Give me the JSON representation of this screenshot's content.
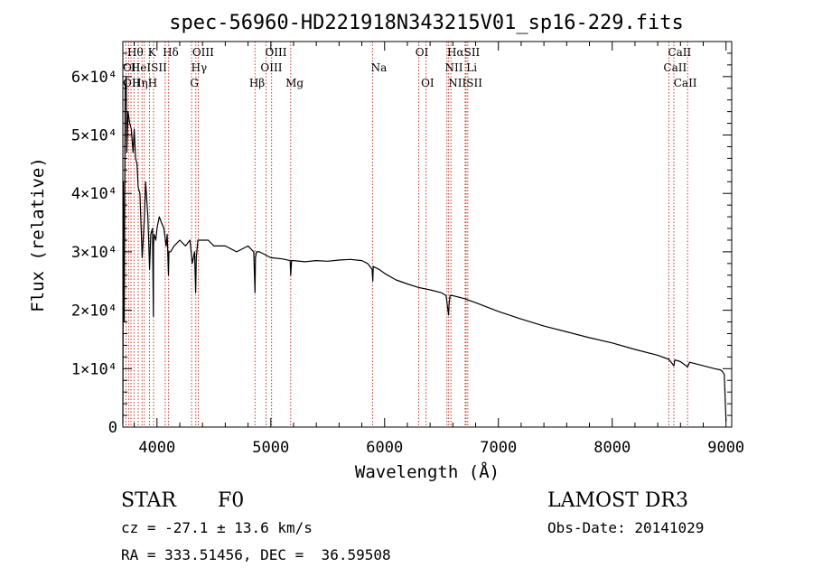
{
  "chart_data": {
    "type": "line",
    "title": "spec-56960-HD221918N343215V01_sp16-229.fits",
    "xlabel": "Wavelength (Å)",
    "ylabel": "Flux (relative)",
    "xlim": [
      3700,
      9050
    ],
    "ylim": [
      0,
      66000
    ],
    "x_ticks": [
      {
        "value": 4000,
        "label": "4000"
      },
      {
        "value": 5000,
        "label": "5000"
      },
      {
        "value": 6000,
        "label": "6000"
      },
      {
        "value": 7000,
        "label": "7000"
      },
      {
        "value": 8000,
        "label": "8000"
      },
      {
        "value": 9000,
        "label": "9000"
      }
    ],
    "y_ticks": [
      {
        "value": 0,
        "label": "0"
      },
      {
        "value": 10000,
        "label": "1×10⁴"
      },
      {
        "value": 20000,
        "label": "2×10⁴"
      },
      {
        "value": 30000,
        "label": "3×10⁴"
      },
      {
        "value": 40000,
        "label": "4×10⁴"
      },
      {
        "value": 50000,
        "label": "5×10⁴"
      },
      {
        "value": 60000,
        "label": "6×10⁴"
      }
    ],
    "series": [
      {
        "name": "spectrum",
        "x": [
          3700,
          3705,
          3712,
          3720,
          3730,
          3735,
          3745,
          3760,
          3775,
          3790,
          3800,
          3812,
          3825,
          3835,
          3850,
          3870,
          3890,
          3900,
          3920,
          3935,
          3945,
          3960,
          3968,
          3970,
          3975,
          3990,
          4000,
          4020,
          4040,
          4060,
          4080,
          4090,
          4101,
          4105,
          4120,
          4150,
          4200,
          4250,
          4290,
          4300,
          4310,
          4330,
          4340,
          4345,
          4360,
          4380,
          4400,
          4450,
          4500,
          4600,
          4700,
          4800,
          4850,
          4861,
          4865,
          4875,
          4900,
          4950,
          5000,
          5100,
          5170,
          5175,
          5183,
          5200,
          5300,
          5400,
          5500,
          5600,
          5700,
          5800,
          5850,
          5890,
          5896,
          5900,
          5950,
          6000,
          6100,
          6200,
          6300,
          6400,
          6500,
          6540,
          6562,
          6566,
          6575,
          6600,
          6700,
          6800,
          7000,
          7200,
          7400,
          7600,
          7800,
          8000,
          8200,
          8400,
          8498,
          8542,
          8550,
          8600,
          8662,
          8680,
          8800,
          8900,
          8950,
          8970,
          8985,
          9000
        ],
        "y": [
          500,
          42000,
          18000,
          58000,
          60000,
          47000,
          54000,
          52000,
          51000,
          47000,
          51000,
          46000,
          45000,
          41000,
          40000,
          29000,
          36000,
          42000,
          36000,
          27000,
          33000,
          34000,
          19000,
          31000,
          33000,
          32000,
          34000,
          36000,
          35000,
          34000,
          31000,
          33000,
          26000,
          30000,
          30000,
          31000,
          32000,
          31000,
          32000,
          30000,
          28000,
          30000,
          23000,
          29000,
          32000,
          32000,
          32000,
          32000,
          31000,
          31000,
          30000,
          31000,
          30000,
          23000,
          29000,
          30000,
          30000,
          29500,
          29000,
          28800,
          28500,
          26000,
          28500,
          28500,
          28300,
          28500,
          28400,
          28600,
          28700,
          28500,
          28000,
          27000,
          25000,
          27500,
          27000,
          26300,
          25200,
          24500,
          23900,
          23500,
          23000,
          22500,
          19200,
          21000,
          22500,
          22500,
          22000,
          21300,
          19800,
          18500,
          17300,
          16300,
          15300,
          14400,
          13300,
          12300,
          11600,
          10500,
          11500,
          11200,
          10300,
          11100,
          10500,
          10000,
          9800,
          9500,
          9000,
          1000
        ]
      }
    ],
    "lines": [
      {
        "wavelength": 3727,
        "label": "OII"
      },
      {
        "wavelength": 3751,
        "label": "Hθ"
      },
      {
        "wavelength": 3771,
        "label": "Hη"
      },
      {
        "wavelength": 3798,
        "label": "Hθ"
      },
      {
        "wavelength": 3835,
        "label": "Hη"
      },
      {
        "wavelength": 3869,
        "label": "Ne"
      },
      {
        "wavelength": 3889,
        "label": "HeI"
      },
      {
        "wavelength": 3934,
        "label": "K"
      },
      {
        "wavelength": 3970,
        "label": "H"
      },
      {
        "wavelength": 4072,
        "label": "SII"
      },
      {
        "wavelength": 4102,
        "label": "Hδ"
      },
      {
        "wavelength": 4304,
        "label": "G"
      },
      {
        "wavelength": 4341,
        "label": "Hγ"
      },
      {
        "wavelength": 4363,
        "label": "OIII"
      },
      {
        "wavelength": 4861,
        "label": "Hβ"
      },
      {
        "wavelength": 4959,
        "label": "OIII"
      },
      {
        "wavelength": 5007,
        "label": "OIII"
      },
      {
        "wavelength": 5175,
        "label": "Mg"
      },
      {
        "wavelength": 5894,
        "label": "Na"
      },
      {
        "wavelength": 6300,
        "label": "OI"
      },
      {
        "wavelength": 6364,
        "label": "OI"
      },
      {
        "wavelength": 6548,
        "label": "NII"
      },
      {
        "wavelength": 6563,
        "label": "Hα"
      },
      {
        "wavelength": 6583,
        "label": "NII"
      },
      {
        "wavelength": 6708,
        "label": "Li"
      },
      {
        "wavelength": 6716,
        "label": "SII"
      },
      {
        "wavelength": 6731,
        "label": "SII"
      },
      {
        "wavelength": 8498,
        "label": "CaII"
      },
      {
        "wavelength": 8542,
        "label": "CaII"
      },
      {
        "wavelength": 8662,
        "label": "CaII"
      }
    ],
    "line_labels": [
      {
        "text": "Hθ",
        "row": 0,
        "x_wl": 3740
      },
      {
        "text": "K",
        "row": 0,
        "x_wl": 3920
      },
      {
        "text": "Hδ",
        "row": 0,
        "x_wl": 4050
      },
      {
        "text": "OIII",
        "row": 0,
        "x_wl": 4310
      },
      {
        "text": "OIII",
        "row": 0,
        "x_wl": 4950
      },
      {
        "text": "OI",
        "row": 0,
        "x_wl": 6270
      },
      {
        "text": "HαSII",
        "row": 0,
        "x_wl": 6550
      },
      {
        "text": "CaII",
        "row": 0,
        "x_wl": 8490
      },
      {
        "text": "OII",
        "row": 1,
        "x_wl": 3700
      },
      {
        "text": "HeISII",
        "row": 1,
        "x_wl": 3770
      },
      {
        "text": "Hγ",
        "row": 1,
        "x_wl": 4300
      },
      {
        "text": "OIII",
        "row": 1,
        "x_wl": 4910
      },
      {
        "text": "Na",
        "row": 1,
        "x_wl": 5880
      },
      {
        "text": "NII Li",
        "row": 1,
        "x_wl": 6530
      },
      {
        "text": "CaII",
        "row": 1,
        "x_wl": 8450
      },
      {
        "text": "OII",
        "row": 2,
        "x_wl": 3700
      },
      {
        "text": "HηH",
        "row": 2,
        "x_wl": 3780
      },
      {
        "text": "G",
        "row": 2,
        "x_wl": 4290
      },
      {
        "text": "Hβ",
        "row": 2,
        "x_wl": 4810
      },
      {
        "text": "Mg",
        "row": 2,
        "x_wl": 5130
      },
      {
        "text": "OI",
        "row": 2,
        "x_wl": 6320
      },
      {
        "text": "NIISII",
        "row": 2,
        "x_wl": 6560
      },
      {
        "text": "CaII",
        "row": 2,
        "x_wl": 8540
      }
    ]
  },
  "footer": {
    "object_type": "STAR",
    "subclass": "F0",
    "survey": "LAMOST DR3",
    "cz": "cz = -27.1 ± 13.6 km/s",
    "obs_date": "Obs-Date: 20141029",
    "coords": "RA = 333.51456, DEC =  36.59508"
  }
}
